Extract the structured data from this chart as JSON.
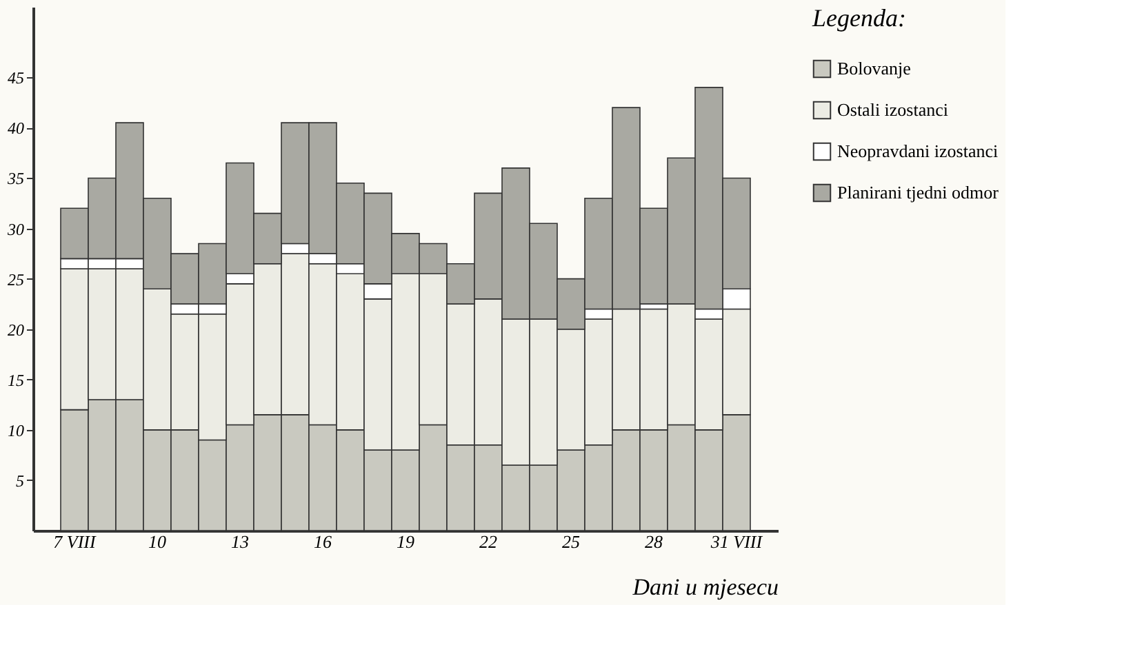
{
  "chart_data": {
    "type": "bar",
    "stacked": true,
    "xlabel": "Dani u mjesecu",
    "legend_title": "Legenda:",
    "legend": "right",
    "grid": false,
    "categories": [
      "7 VIII",
      null,
      null,
      "10",
      null,
      null,
      "13",
      null,
      null,
      "16",
      null,
      null,
      "19",
      null,
      null,
      "22",
      null,
      null,
      "25",
      null,
      null,
      "28",
      null,
      null,
      "31 VIII"
    ],
    "ylim": [
      0,
      52
    ],
    "yticks": [
      5,
      10,
      15,
      20,
      25,
      30,
      35,
      40,
      45
    ],
    "series": [
      {
        "name": "Bolovanje",
        "color": "#c9c9c0",
        "values": [
          12,
          13,
          13,
          10,
          10,
          9,
          10.5,
          11.5,
          11.5,
          10.5,
          10,
          8,
          8,
          10.5,
          8.5,
          8.5,
          6.5,
          6.5,
          8,
          8.5,
          10,
          10,
          10.5,
          10,
          11.5
        ]
      },
      {
        "name": "Ostali izostanci",
        "color": "#ecece4",
        "values": [
          14,
          13,
          13,
          14,
          11.5,
          12.5,
          14,
          15,
          16,
          16,
          15.5,
          15,
          17.5,
          15,
          14,
          14.5,
          14.5,
          14.5,
          12,
          12.5,
          12,
          12,
          12,
          11,
          10.5
        ]
      },
      {
        "name": "Neopravdani izostanci",
        "color": "#ffffff",
        "values": [
          1,
          1,
          1,
          0,
          1,
          1,
          1,
          0,
          1,
          1,
          1,
          1.5,
          0,
          0,
          0,
          0,
          0,
          0,
          0,
          1,
          0,
          0.5,
          0,
          1,
          2
        ]
      },
      {
        "name": "Planirani tjedni odmor",
        "color": "#a9a9a2",
        "values": [
          5,
          8,
          13.5,
          9,
          5,
          6,
          11,
          5,
          12,
          13,
          8,
          9,
          4,
          3,
          4,
          10.5,
          15,
          9.5,
          5,
          11,
          20,
          9.5,
          14.5,
          22,
          11
        ]
      }
    ]
  }
}
